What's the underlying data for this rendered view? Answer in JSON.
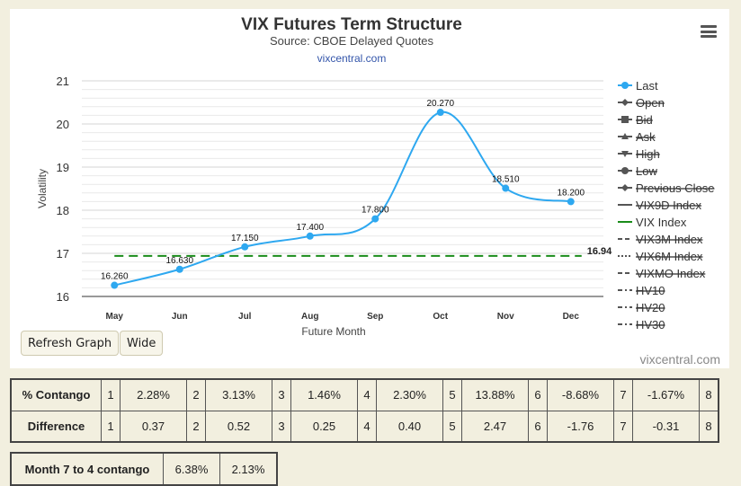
{
  "chart_data": {
    "type": "line",
    "title": "VIX Futures Term Structure",
    "subtitle": "Source: CBOE Delayed Quotes",
    "link": "vixcentral.com",
    "xlabel": "Future Month",
    "ylabel": "Volatility",
    "categories": [
      "May",
      "Jun",
      "Jul",
      "Aug",
      "Sep",
      "Oct",
      "Nov",
      "Dec"
    ],
    "ylim": [
      16,
      21
    ],
    "yticks": [
      "16",
      "17",
      "18",
      "19",
      "20",
      "21"
    ],
    "grid": true,
    "legend_position": "right",
    "series": [
      {
        "name": "Last",
        "values": [
          16.26,
          16.63,
          17.15,
          17.4,
          17.8,
          20.27,
          18.51,
          18.2
        ],
        "labels": [
          "16.260",
          "16.630",
          "17.150",
          "17.400",
          "17.800",
          "20.270",
          "18.510",
          "18.200"
        ],
        "color": "#2ea8f0"
      }
    ],
    "reference_line": {
      "name": "VIX Index",
      "value": 16.94,
      "label": "16.94",
      "color": "#1a8c1a",
      "style": "dashed"
    },
    "legend": [
      {
        "name": "Last",
        "symbol": "circle",
        "active": true
      },
      {
        "name": "Open",
        "symbol": "diamond",
        "active": false
      },
      {
        "name": "Bid",
        "symbol": "square",
        "active": false
      },
      {
        "name": "Ask",
        "symbol": "triangle",
        "active": false
      },
      {
        "name": "High",
        "symbol": "triangle-down",
        "active": false
      },
      {
        "name": "Low",
        "symbol": "circle",
        "active": false
      },
      {
        "name": "Previous Close",
        "symbol": "diamond",
        "active": false
      },
      {
        "name": "VIX9D Index",
        "symbol": "solid",
        "active": false
      },
      {
        "name": "VIX Index",
        "symbol": "solid-green",
        "active": true
      },
      {
        "name": "VIX3M Index",
        "symbol": "dash",
        "active": false
      },
      {
        "name": "VIX6M Index",
        "symbol": "dot",
        "active": false
      },
      {
        "name": "VIXMO Index",
        "symbol": "dash",
        "active": false
      },
      {
        "name": "HV10",
        "symbol": "dashdot",
        "active": false
      },
      {
        "name": "HV20",
        "symbol": "dashdot",
        "active": false
      },
      {
        "name": "HV30",
        "symbol": "dashdot",
        "active": false
      }
    ]
  },
  "buttons": {
    "refresh": "Refresh Graph",
    "wide": "Wide"
  },
  "credit": "vixcentral.com",
  "contango": {
    "row_label": "% Contango",
    "cells": [
      {
        "i": "1",
        "v": "2.28%"
      },
      {
        "i": "2",
        "v": "3.13%"
      },
      {
        "i": "3",
        "v": "1.46%"
      },
      {
        "i": "4",
        "v": "2.30%"
      },
      {
        "i": "5",
        "v": "13.88%"
      },
      {
        "i": "6",
        "v": "-8.68%"
      },
      {
        "i": "7",
        "v": "-1.67%"
      }
    ],
    "last_index": "8"
  },
  "difference": {
    "row_label": "Difference",
    "cells": [
      {
        "i": "1",
        "v": "0.37"
      },
      {
        "i": "2",
        "v": "0.52"
      },
      {
        "i": "3",
        "v": "0.25"
      },
      {
        "i": "4",
        "v": "0.40"
      },
      {
        "i": "5",
        "v": "2.47"
      },
      {
        "i": "6",
        "v": "-1.76"
      },
      {
        "i": "7",
        "v": "-0.31"
      }
    ],
    "last_index": "8"
  },
  "month74": {
    "label": "Month 7 to 4 contango",
    "values": [
      "6.38%",
      "2.13%"
    ]
  }
}
